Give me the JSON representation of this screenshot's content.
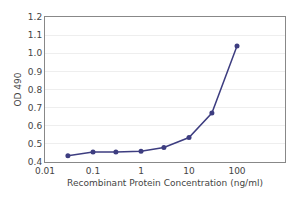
{
  "chart_data": {
    "type": "line",
    "x": [
      0.03,
      0.1,
      0.3,
      1.0,
      3.0,
      10.0,
      30.0,
      100.0
    ],
    "values": [
      0.435,
      0.455,
      0.455,
      0.46,
      0.48,
      0.535,
      0.67,
      1.04
    ],
    "color": "#3d3d80",
    "marker": "circle",
    "log": "x",
    "xlim": [
      0.01,
      1000
    ],
    "ylim": [
      0.4,
      1.2
    ],
    "xticks": [
      0.01,
      0.1,
      1,
      10,
      100
    ],
    "yticks": [
      0.4,
      0.5,
      0.6,
      0.7,
      0.8,
      0.9,
      {
        "value": 1,
        "label": "1.0"
      },
      1.1,
      1.2
    ],
    "xlabel": "Recombinant Protein Concentration (ng/ml)",
    "ylabel": "OD 490",
    "grid": "y"
  }
}
